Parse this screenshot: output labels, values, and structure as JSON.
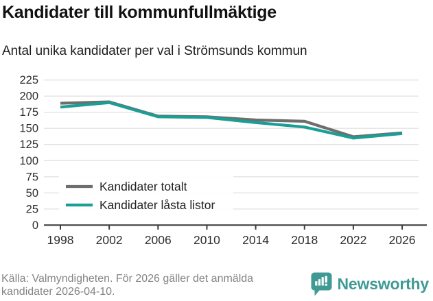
{
  "header": {
    "title": "Kandidater till kommunfullmäktige",
    "subtitle": "Antal unika kandidater per val i Strömsunds kommun"
  },
  "chart_data": {
    "type": "line",
    "categories": [
      "1998",
      "2002",
      "2006",
      "2010",
      "2014",
      "2018",
      "2022",
      "2026"
    ],
    "series": [
      {
        "name": "Kandidater totalt",
        "color": "#6e6e6e",
        "values": [
          189,
          191,
          169,
          168,
          163,
          161,
          137,
          143
        ]
      },
      {
        "name": "Kandidater låsta listor",
        "color": "#1a9e96",
        "values": [
          183,
          190,
          168,
          167,
          159,
          152,
          135,
          142
        ]
      }
    ],
    "title": "Kandidater till kommunfullmäktige",
    "subtitle": "Antal unika kandidater per val i Strömsunds kommun",
    "xlabel": "",
    "ylabel": "",
    "ylim": [
      0,
      225
    ],
    "ytick_step": 25,
    "grid": true,
    "legend_position": "inside-bottom-left"
  },
  "legend": {
    "items": [
      {
        "label": "Kandidater totalt",
        "color": "#6e6e6e"
      },
      {
        "label": "Kandidater låsta listor",
        "color": "#1a9e96"
      }
    ]
  },
  "footer": {
    "source": "Källa: Valmyndigheten. För 2026 gäller det anmälda kandidater 2026-04-10.",
    "brand": "Newsworthy"
  },
  "icons": {
    "brand_logo": "newsworthy-bars-exclamation-bubble"
  },
  "colors": {
    "series_total": "#6e6e6e",
    "series_locked": "#1a9e96",
    "gridline": "#e3e3e3",
    "axis": "#3c3c3c",
    "tick_text": "#2e2e2e",
    "legend_text": "#222222",
    "muted_text": "#848484",
    "brand_teal": "#3f9a94",
    "background": "#ffffff"
  }
}
